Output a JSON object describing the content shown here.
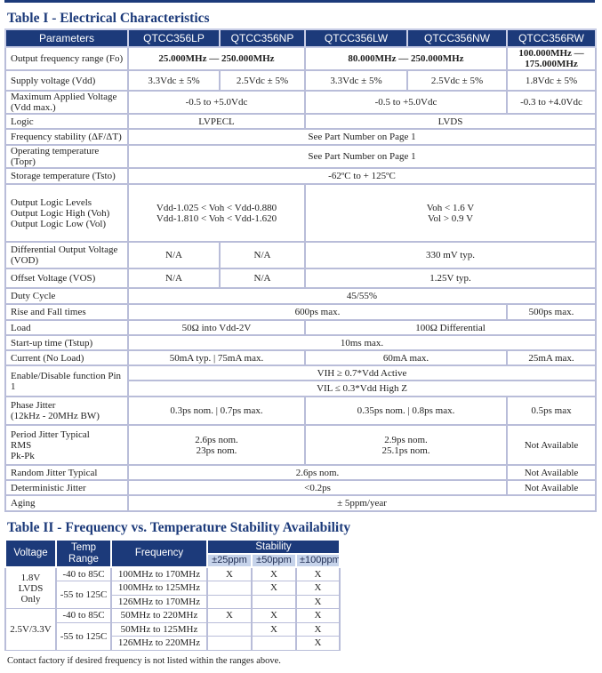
{
  "table1": {
    "title": "Table I - Electrical Characteristics",
    "headers": [
      "Parameters",
      "QTCC356LP",
      "QTCC356NP",
      "QTCC356LW",
      "QTCC356NW",
      "QTCC356RW"
    ],
    "rows": [
      {
        "label": "Output frequency range (Fo)",
        "values": [
          "25.000MHz — 250.000MHz",
          "80.000MHz — 250.000MHz",
          "100.000MHz —\n175.000MHz"
        ]
      },
      {
        "label": "Supply voltage (Vdd)",
        "values": [
          "3.3Vdc ± 5%",
          "2.5Vdc ± 5%",
          "3.3Vdc ± 5%",
          "2.5Vdc ± 5%",
          "1.8Vdc ± 5%"
        ]
      },
      {
        "label": "Maximum Applied Voltage\n(Vdd max.)",
        "values": [
          "-0.5 to +5.0Vdc",
          "-0.5 to +5.0Vdc",
          "-0.3 to +4.0Vdc"
        ]
      },
      {
        "label": "Logic",
        "values": [
          "LVPECL",
          "LVDS"
        ]
      },
      {
        "label": "Frequency stability (ΔF/ΔT)",
        "values": [
          "See Part Number on Page 1"
        ]
      },
      {
        "label": "Operating temperature (Topr)",
        "values": [
          "See Part Number on Page 1"
        ]
      },
      {
        "label": "Storage temperature (Tsto)",
        "values": [
          "-62ºC to + 125ºC"
        ]
      },
      {
        "label": "Output Logic Levels\n   Output Logic High (Voh)\n   Output Logic Low (Vol)",
        "values": [
          "Vdd-1.025 < Voh < Vdd-0.880\nVdd-1.810 < Voh < Vdd-1.620",
          "Voh < 1.6 V\nVol > 0.9 V"
        ]
      },
      {
        "label": "Differential Output Voltage\n(VOD)",
        "values": [
          "N/A",
          "N/A",
          "330 mV typ."
        ]
      },
      {
        "label": "Offset Voltage (VOS)",
        "values": [
          "N/A",
          "N/A",
          "1.25V typ."
        ]
      },
      {
        "label": "Duty Cycle",
        "values": [
          "45/55%"
        ]
      },
      {
        "label": "Rise and Fall times",
        "values": [
          "600ps max.",
          "500ps max."
        ]
      },
      {
        "label": "Load",
        "values": [
          "50Ω into Vdd-2V",
          "100Ω Differential"
        ]
      },
      {
        "label": "Start-up time (Tstup)",
        "values": [
          "10ms max."
        ]
      },
      {
        "label": "Current (No Load)",
        "values": [
          "50mA typ. | 75mA max.",
          "60mA max.",
          "25mA max."
        ]
      },
      {
        "label": "Enable/Disable function Pin\n1",
        "values": [
          "VIH ≥ 0.7*Vdd Active",
          "VIL ≤ 0.3*Vdd High Z"
        ]
      },
      {
        "label": "Phase Jitter\n(12kHz - 20MHz BW)",
        "values": [
          "0.3ps nom. |  0.7ps max.",
          "0.35ps nom. |  0.8ps max.",
          "0.5ps max"
        ]
      },
      {
        "label": "Period Jitter Typical\n   RMS\n   Pk-Pk",
        "values": [
          "2.6ps nom.\n23ps nom.",
          "2.9ps nom.\n25.1ps nom.",
          "Not Available"
        ]
      },
      {
        "label": "Random Jitter Typical",
        "values": [
          "2.6ps nom.",
          "Not Available"
        ]
      },
      {
        "label": "Deterministic Jitter",
        "values": [
          "<0.2ps",
          "Not Available"
        ]
      },
      {
        "label": "Aging",
        "values": [
          "± 5ppm/year"
        ]
      }
    ]
  },
  "table2": {
    "title": "Table II - Frequency vs. Temperature Stability Availability",
    "headers": {
      "voltage": "Voltage",
      "temp": "Temp\nRange",
      "frequency": "Frequency",
      "stability": "Stability",
      "ppm": [
        "±25ppm",
        "±50ppm",
        "±100ppm"
      ]
    },
    "groups": [
      {
        "voltage": "1.8V\nLVDS Only",
        "temps": [
          {
            "range": "-40 to 85C",
            "rows": [
              {
                "freq": "100MHz to 170MHz",
                "marks": [
                  "X",
                  "X",
                  "X"
                ]
              }
            ]
          },
          {
            "range": "-55 to 125C",
            "rows": [
              {
                "freq": "100MHz to 125MHz",
                "marks": [
                  "",
                  "X",
                  "X"
                ]
              },
              {
                "freq": "126MHz to 170MHz",
                "marks": [
                  "",
                  "",
                  "X"
                ]
              }
            ]
          }
        ]
      },
      {
        "voltage": "2.5V/3.3V",
        "temps": [
          {
            "range": "-40 to 85C",
            "rows": [
              {
                "freq": "50MHz to 220MHz",
                "marks": [
                  "X",
                  "X",
                  "X"
                ]
              }
            ]
          },
          {
            "range": "-55 to 125C",
            "rows": [
              {
                "freq": "50MHz to 125MHz",
                "marks": [
                  "",
                  "X",
                  "X"
                ]
              },
              {
                "freq": "126MHz to 220MHz",
                "marks": [
                  "",
                  "",
                  "X"
                ]
              }
            ]
          }
        ]
      }
    ],
    "footnote": "Contact factory if desired frequency is not listed within the ranges above."
  },
  "colors": {
    "header": "#1c3a7a",
    "subheader": "#c6d3ea",
    "grid": "#b9bdd9"
  }
}
